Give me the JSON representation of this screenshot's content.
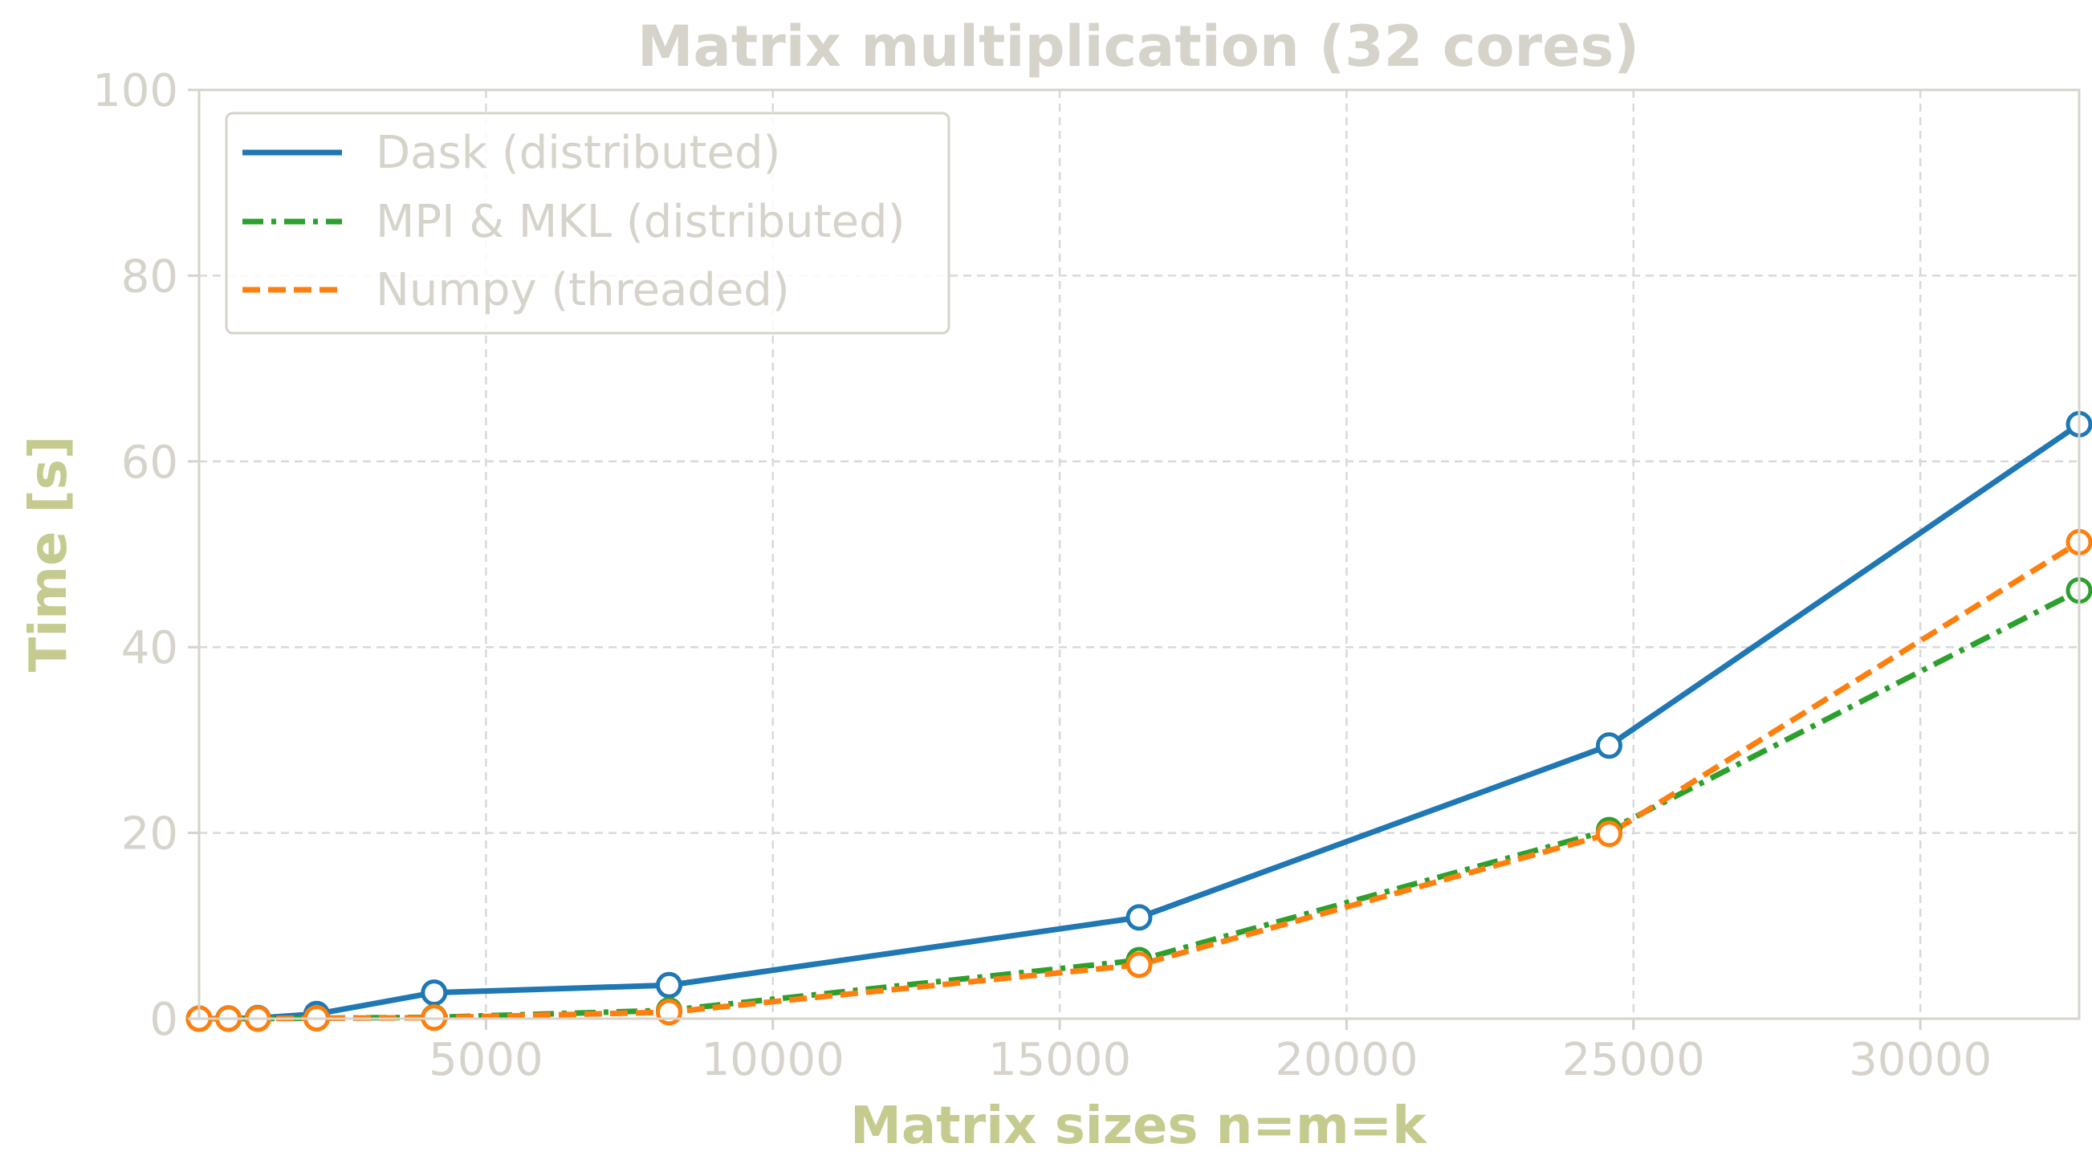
{
  "chart_data": {
    "type": "line",
    "title": "Matrix multiplication (32 cores)",
    "xlabel": "Matrix sizes n=m=k",
    "ylabel": "Time [s]",
    "xlim": [
      0,
      32768
    ],
    "ylim": [
      0,
      100
    ],
    "xticks": [
      5000,
      10000,
      15000,
      20000,
      25000,
      30000
    ],
    "yticks": [
      0,
      20,
      40,
      60,
      80,
      100
    ],
    "grid": true,
    "legend_position": "top-left",
    "series": [
      {
        "name": "Dask (distributed)",
        "color": "#1f77b4",
        "line_style": "solid",
        "x": [
          0,
          512,
          1024,
          2048,
          4096,
          8192,
          16384,
          24576,
          32768
        ],
        "y": [
          0.0,
          0.02,
          0.06,
          0.5,
          2.8,
          3.6,
          10.9,
          29.4,
          64.0
        ]
      },
      {
        "name": "MPI & MKL (distributed)",
        "color": "#2ca02c",
        "line_style": "dashdot",
        "x": [
          0,
          512,
          1024,
          2048,
          4096,
          8192,
          16384,
          24576,
          32768
        ],
        "y": [
          0.0,
          0.0,
          0.01,
          0.05,
          0.15,
          0.9,
          6.3,
          20.3,
          46.1
        ]
      },
      {
        "name": "Numpy (threaded)",
        "color": "#ff7f0e",
        "line_style": "dashed",
        "x": [
          0,
          512,
          1024,
          2048,
          4096,
          8192,
          16384,
          24576,
          32768
        ],
        "y": [
          0.0,
          0.0,
          0.01,
          0.04,
          0.1,
          0.7,
          5.8,
          19.9,
          51.3
        ]
      }
    ]
  }
}
